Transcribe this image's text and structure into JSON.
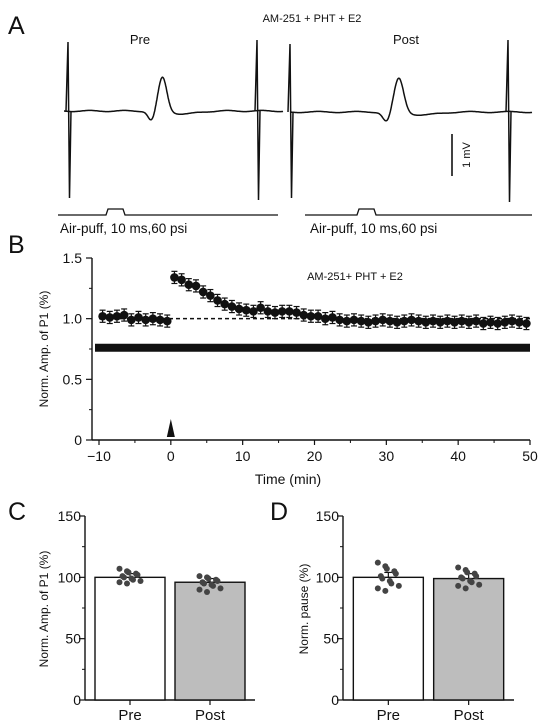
{
  "panels": {
    "a": {
      "letter": "A",
      "condition": "AM-251 + PHT + E2",
      "pre_label": "Pre",
      "post_label": "Post",
      "stimulus_label": "Air-puff, 10 ms,60 psi",
      "scale_label": "1 mV"
    },
    "b": {
      "letter": "B"
    },
    "c": {
      "letter": "C"
    },
    "d": {
      "letter": "D"
    }
  },
  "chart_data": [
    {
      "id": "B",
      "type": "scatter",
      "title": "AM-251+ PHT + E2",
      "xlabel": "Time (min)",
      "ylabel": "Norm. Amp. of P1 (%)",
      "xlim": [
        -10,
        50
      ],
      "ylim": [
        0,
        1.5
      ],
      "xticks": [
        "−10",
        "0",
        "10",
        "20",
        "30",
        "40",
        "50"
      ],
      "yticks": [
        "0",
        "0.5",
        "1.0",
        "1.5"
      ],
      "baseline": 1.0,
      "bar_level": 0.76,
      "stim_time": 0,
      "x": [
        -9.5,
        -8.5,
        -7.5,
        -6.5,
        -5.5,
        -4.5,
        -3.5,
        -2.5,
        -1.5,
        -0.5,
        0.5,
        1.5,
        2.5,
        3.5,
        4.5,
        5.5,
        6.5,
        7.5,
        8.5,
        9.5,
        10.5,
        11.5,
        12.5,
        13.5,
        14.5,
        15.5,
        16.5,
        17.5,
        18.5,
        19.5,
        20.5,
        21.5,
        22.5,
        23.5,
        24.5,
        25.5,
        26.5,
        27.5,
        28.5,
        29.5,
        30.5,
        31.5,
        32.5,
        33.5,
        34.5,
        35.5,
        36.5,
        37.5,
        38.5,
        39.5,
        40.5,
        41.5,
        42.5,
        43.5,
        44.5,
        45.5,
        46.5,
        47.5,
        48.5,
        49.5
      ],
      "y": [
        1.02,
        1.01,
        1.02,
        1.03,
        0.99,
        1.01,
        0.99,
        1.0,
        0.99,
        0.98,
        1.34,
        1.32,
        1.28,
        1.27,
        1.22,
        1.19,
        1.15,
        1.12,
        1.1,
        1.08,
        1.07,
        1.06,
        1.09,
        1.06,
        1.05,
        1.06,
        1.06,
        1.05,
        1.03,
        1.02,
        1.02,
        1.0,
        1.01,
        0.99,
        0.98,
        0.99,
        0.98,
        0.97,
        0.98,
        0.99,
        0.98,
        0.97,
        0.98,
        0.99,
        0.98,
        0.97,
        0.98,
        0.97,
        0.98,
        0.97,
        0.98,
        0.97,
        0.98,
        0.96,
        0.97,
        0.96,
        0.97,
        0.98,
        0.97,
        0.96
      ],
      "err": 0.05
    },
    {
      "id": "C",
      "type": "bar",
      "ylabel": "Norm. Amp. of P1 (%)",
      "ylim": [
        0,
        150
      ],
      "yticks": [
        "0",
        "50",
        "100",
        "150"
      ],
      "categories": [
        "Pre",
        "Post"
      ],
      "values": [
        100,
        96
      ],
      "err": [
        3,
        3
      ],
      "fills": [
        "#ffffff",
        "#bdbdbd"
      ],
      "points": [
        [
          107,
          105,
          104,
          103,
          102,
          101,
          100,
          99,
          98,
          97,
          96,
          95
        ],
        [
          101,
          100,
          99,
          98,
          97,
          96,
          95,
          94,
          93,
          91,
          90,
          88
        ]
      ]
    },
    {
      "id": "D",
      "type": "bar",
      "ylabel": "Norm. pause (%)",
      "ylim": [
        0,
        150
      ],
      "yticks": [
        "0",
        "50",
        "100",
        "150"
      ],
      "categories": [
        "Pre",
        "Post"
      ],
      "values": [
        100,
        99
      ],
      "err": [
        4,
        4
      ],
      "fills": [
        "#ffffff",
        "#bdbdbd"
      ],
      "points": [
        [
          112,
          109,
          107,
          105,
          103,
          101,
          99,
          97,
          95,
          93,
          91,
          89
        ],
        [
          108,
          106,
          104,
          103,
          101,
          100,
          99,
          97,
          96,
          94,
          93,
          91
        ]
      ]
    }
  ]
}
